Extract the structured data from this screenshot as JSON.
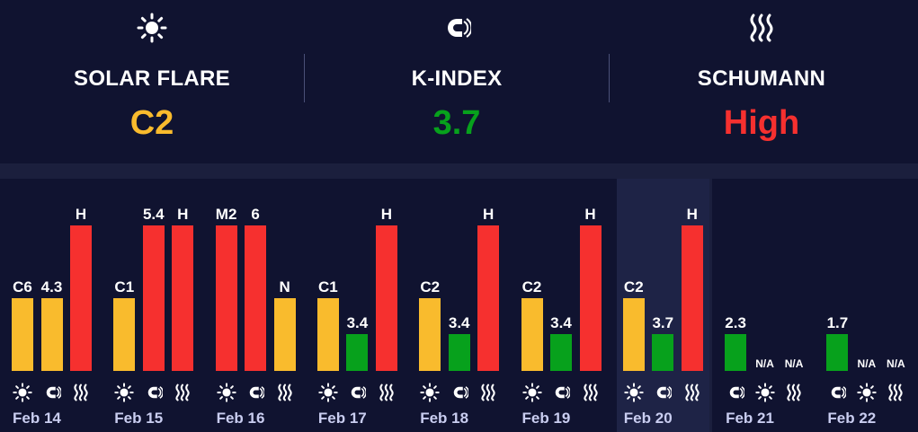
{
  "colors": {
    "yellow": "#f9bb2d",
    "red": "#f6302f",
    "green": "#07a11c",
    "background": "#101330",
    "today_highlight": "#1e2346"
  },
  "summary": [
    {
      "icon": "sun-icon",
      "label": "SOLAR FLARE",
      "value": "C2",
      "color": "#f9bb2d"
    },
    {
      "icon": "magnet-icon",
      "label": "K-INDEX",
      "value": "3.7",
      "color": "#07a11c"
    },
    {
      "icon": "waves-icon",
      "label": "SCHUMANN",
      "value": "High",
      "color": "#f6302f"
    }
  ],
  "days": [
    {
      "date": "Feb 14",
      "bars": [
        {
          "kind": "solar",
          "label": "C6",
          "level": 0.5,
          "color": "#f9bb2d"
        },
        {
          "kind": "kindex",
          "label": "4.3",
          "level": 0.5,
          "color": "#f9bb2d"
        },
        {
          "kind": "schumann",
          "label": "H",
          "level": 1.0,
          "color": "#f6302f"
        }
      ]
    },
    {
      "date": "Feb 15",
      "bars": [
        {
          "kind": "solar",
          "label": "C1",
          "level": 0.5,
          "color": "#f9bb2d"
        },
        {
          "kind": "kindex",
          "label": "5.4",
          "level": 1.0,
          "color": "#f6302f"
        },
        {
          "kind": "schumann",
          "label": "H",
          "level": 1.0,
          "color": "#f6302f"
        }
      ]
    },
    {
      "date": "Feb 16",
      "bars": [
        {
          "kind": "solar",
          "label": "M2",
          "level": 1.0,
          "color": "#f6302f"
        },
        {
          "kind": "kindex",
          "label": "6",
          "level": 1.0,
          "color": "#f6302f"
        },
        {
          "kind": "schumann",
          "label": "N",
          "level": 0.5,
          "color": "#f9bb2d"
        }
      ]
    },
    {
      "date": "Feb 17",
      "bars": [
        {
          "kind": "solar",
          "label": "C1",
          "level": 0.5,
          "color": "#f9bb2d"
        },
        {
          "kind": "kindex",
          "label": "3.4",
          "level": 0.25,
          "color": "#07a11c"
        },
        {
          "kind": "schumann",
          "label": "H",
          "level": 1.0,
          "color": "#f6302f"
        }
      ]
    },
    {
      "date": "Feb 18",
      "bars": [
        {
          "kind": "solar",
          "label": "C2",
          "level": 0.5,
          "color": "#f9bb2d"
        },
        {
          "kind": "kindex",
          "label": "3.4",
          "level": 0.25,
          "color": "#07a11c"
        },
        {
          "kind": "schumann",
          "label": "H",
          "level": 1.0,
          "color": "#f6302f"
        }
      ]
    },
    {
      "date": "Feb 19",
      "bars": [
        {
          "kind": "solar",
          "label": "C2",
          "level": 0.5,
          "color": "#f9bb2d"
        },
        {
          "kind": "kindex",
          "label": "3.4",
          "level": 0.25,
          "color": "#07a11c"
        },
        {
          "kind": "schumann",
          "label": "H",
          "level": 1.0,
          "color": "#f6302f"
        }
      ]
    },
    {
      "date": "Feb 20",
      "today": true,
      "bars": [
        {
          "kind": "solar",
          "label": "C2",
          "level": 0.5,
          "color": "#f9bb2d"
        },
        {
          "kind": "kindex",
          "label": "3.7",
          "level": 0.25,
          "color": "#07a11c"
        },
        {
          "kind": "schumann",
          "label": "H",
          "level": 1.0,
          "color": "#f6302f"
        }
      ]
    },
    {
      "date": "Feb 21",
      "forecast": true,
      "bars": [
        {
          "kind": "kindex",
          "label": "2.3",
          "level": 0.25,
          "color": "#07a11c"
        },
        {
          "kind": "solar",
          "label": "N/A",
          "level": 0,
          "color": "#f9bb2d"
        },
        {
          "kind": "schumann",
          "label": "N/A",
          "level": 0,
          "color": "#f6302f"
        }
      ]
    },
    {
      "date": "Feb 22",
      "forecast": true,
      "bars": [
        {
          "kind": "kindex",
          "label": "1.7",
          "level": 0.25,
          "color": "#07a11c"
        },
        {
          "kind": "solar",
          "label": "N/A",
          "level": 0,
          "color": "#f9bb2d"
        },
        {
          "kind": "schumann",
          "label": "N/A",
          "level": 0,
          "color": "#f6302f"
        }
      ]
    }
  ]
}
